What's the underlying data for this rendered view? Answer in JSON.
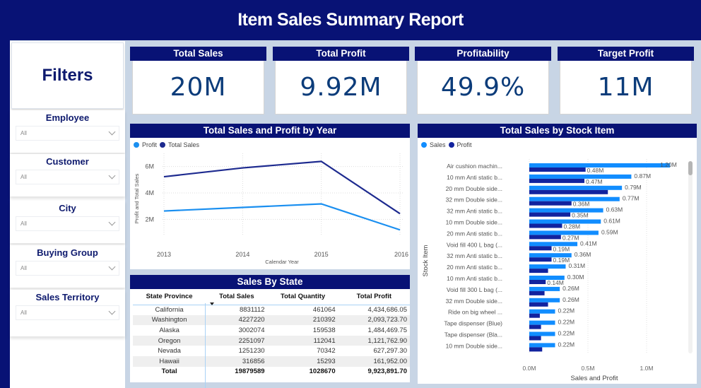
{
  "header": {
    "title": "Item Sales Summary Report"
  },
  "colors": {
    "navy": "#081275",
    "sales_line": "#1d2a8f",
    "profit_line": "#1a8ff0",
    "bar_sales": "#118dff",
    "bar_profit": "#12239e",
    "kpi_text": "#0c3c7a"
  },
  "sidebar": {
    "title": "Filters",
    "slicers": [
      {
        "label": "Employee",
        "value": "All"
      },
      {
        "label": "Customer",
        "value": "All"
      },
      {
        "label": "City",
        "value": "All"
      },
      {
        "label": "Buying Group",
        "value": "All"
      },
      {
        "label": "Sales Territory",
        "value": "All"
      }
    ]
  },
  "kpis": [
    {
      "title": "Total Sales",
      "value": "20M"
    },
    {
      "title": "Total Profit",
      "value": "9.92M"
    },
    {
      "title": "Profitability",
      "value": "49.9%"
    },
    {
      "title": "Target Profit",
      "value": "11M"
    }
  ],
  "line_panel": {
    "title": "Total Sales and Profit by Year"
  },
  "bar_panel": {
    "title": "Total Sales by Stock Item"
  },
  "table_panel": {
    "title": "Sales By State",
    "columns": [
      "State Province",
      "Total Sales",
      "Total Quantity",
      "Total Profit"
    ],
    "rows": [
      [
        "California",
        "8831112",
        "461064",
        "4,434,686.05"
      ],
      [
        "Washington",
        "4227220",
        "210392",
        "2,093,723.70"
      ],
      [
        "Alaska",
        "3002074",
        "159538",
        "1,484,469.75"
      ],
      [
        "Oregon",
        "2251097",
        "112041",
        "1,121,762.90"
      ],
      [
        "Nevada",
        "1251230",
        "70342",
        "627,297.30"
      ],
      [
        "Hawaii",
        "316856",
        "15293",
        "161,952.00"
      ]
    ],
    "total": [
      "Total",
      "19879589",
      "1028670",
      "9,923,891.70"
    ]
  },
  "chart_data": [
    {
      "type": "line",
      "title": "Total Sales and Profit by Year",
      "x": [
        "2013",
        "2014",
        "2015",
        "2016"
      ],
      "xlabel": "Calendar Year",
      "ylabel": "Profit and Total Sales",
      "yticks": [
        "2M",
        "4M",
        "6M"
      ],
      "ylim": [
        1,
        7
      ],
      "grid": true,
      "legend": "top-left",
      "series": [
        {
          "name": "Profit",
          "color": "#1a8ff0",
          "values": [
            2.63,
            2.9,
            3.17,
            1.2
          ]
        },
        {
          "name": "Total Sales",
          "color": "#1d2a8f",
          "values": [
            5.23,
            5.9,
            6.39,
            2.43
          ]
        }
      ]
    },
    {
      "type": "bar",
      "orientation": "horizontal",
      "title": "Total Sales by Stock Item",
      "xlabel": "Sales and Profit",
      "ylabel": "Stock Item",
      "xticks": [
        "0.0M",
        "0.5M",
        "1.0M"
      ],
      "xlim": [
        0,
        1.25
      ],
      "legend": "top-left",
      "categories": [
        "Air cushion machin...",
        "10 mm Anti static b...",
        "20 mm Double side...",
        "32 mm Double side...",
        "32 mm Anti static b...",
        "10 mm Double side...",
        "20 mm Anti static b...",
        "Void fill 400 L bag (...",
        "32 mm Anti static b...",
        "20 mm Anti static b...",
        "10 mm Anti static b...",
        "Void fill 300 L bag (...",
        "32 mm Double side...",
        "Ride on big wheel ...",
        "Tape dispenser (Blue)",
        "Tape dispenser (Bla...",
        "10 mm Double side..."
      ],
      "series": [
        {
          "name": "Sales",
          "color": "#118dff",
          "values": [
            1.2,
            0.87,
            0.79,
            0.77,
            0.63,
            0.61,
            0.59,
            0.41,
            0.36,
            0.31,
            0.3,
            0.26,
            0.26,
            0.22,
            0.22,
            0.22,
            0.22
          ],
          "labels": [
            "1.20M",
            "0.87M",
            "0.79M",
            "0.77M",
            "0.63M",
            "0.61M",
            "0.59M",
            "0.41M",
            "0.36M",
            "0.31M",
            "0.30M",
            "0.26M",
            "0.26M",
            "0.22M",
            "0.22M",
            "0.22M",
            "0.22M"
          ]
        },
        {
          "name": "Profit",
          "color": "#12239e",
          "values": [
            0.48,
            0.47,
            0.67,
            0.36,
            0.35,
            0.28,
            0.27,
            0.19,
            0.19,
            0.16,
            0.14,
            0.13,
            0.16,
            0.09,
            0.1,
            0.1,
            0.11
          ],
          "labels": [
            "0.48M",
            "0.47M",
            "",
            "0.36M",
            "0.35M",
            "0.28M",
            "0.27M",
            "0.19M",
            "0.19M",
            "",
            "0.14M",
            "",
            "",
            "",
            "",
            "",
            ""
          ]
        }
      ]
    }
  ]
}
